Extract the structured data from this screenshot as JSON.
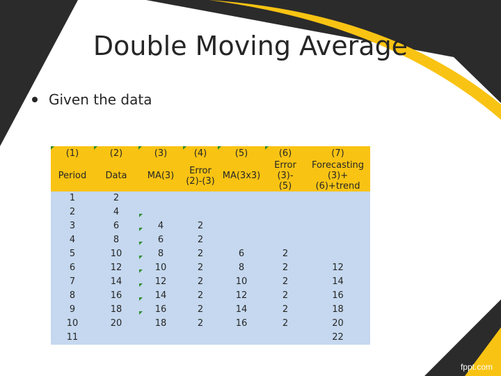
{
  "slide": {
    "title": "Double Moving Average",
    "bullet": "Given the data",
    "footer": "fppt.com"
  },
  "table": {
    "header_numbers": [
      "(1)",
      "(2)",
      "(3)",
      "(4)",
      "(5)",
      "(6)",
      "(7)"
    ],
    "header_names": [
      [
        "Period"
      ],
      [
        "Data"
      ],
      [
        "MA(3)"
      ],
      [
        "Error",
        "(2)-(3)"
      ],
      [
        "MA(3x3)"
      ],
      [
        "Error (3)-",
        "(5)"
      ],
      [
        "Forecasting",
        "(3)+(6)+trend"
      ]
    ],
    "rows": [
      [
        "1",
        "2",
        "",
        "",
        "",
        "",
        ""
      ],
      [
        "2",
        "4",
        "",
        "",
        "",
        "",
        ""
      ],
      [
        "3",
        "6",
        "4",
        "2",
        "",
        "",
        ""
      ],
      [
        "4",
        "8",
        "6",
        "2",
        "",
        "",
        ""
      ],
      [
        "5",
        "10",
        "8",
        "2",
        "6",
        "2",
        ""
      ],
      [
        "6",
        "12",
        "10",
        "2",
        "8",
        "2",
        "12"
      ],
      [
        "7",
        "14",
        "12",
        "2",
        "10",
        "2",
        "14"
      ],
      [
        "8",
        "16",
        "14",
        "2",
        "12",
        "2",
        "16"
      ],
      [
        "9",
        "18",
        "16",
        "2",
        "14",
        "2",
        "18"
      ],
      [
        "10",
        "20",
        "18",
        "2",
        "16",
        "2",
        "20"
      ],
      [
        "11",
        "",
        "",
        "",
        "",
        "",
        "22"
      ]
    ]
  },
  "colors": {
    "header_bg": "#f9c313",
    "body_bg": "#c5d8ef",
    "accent_yellow": "#f9c313",
    "dark_band": "#2b2b2b",
    "text": "#262626"
  }
}
